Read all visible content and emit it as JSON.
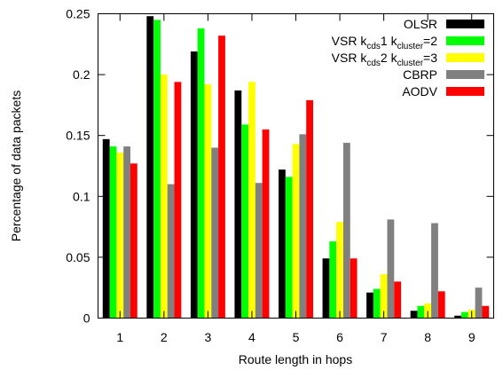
{
  "chart_data": {
    "type": "bar",
    "title": "",
    "xlabel": "Route length in hops",
    "ylabel": "Percentage of data packets",
    "categories": [
      "1",
      "2",
      "3",
      "4",
      "5",
      "6",
      "7",
      "8",
      "9"
    ],
    "ylim": [
      0,
      0.25
    ],
    "yticks": [
      "0",
      "0.05",
      "0.1",
      "0.15",
      "0.2",
      "0.25"
    ],
    "grid": false,
    "legend_position": "top-right",
    "series": [
      {
        "name": "OLSR",
        "legend": {
          "pre": "OLSR"
        },
        "color": "#000000",
        "values": [
          0.147,
          0.248,
          0.219,
          0.187,
          0.122,
          0.049,
          0.021,
          0.006,
          0.002
        ]
      },
      {
        "name": "VSR kcds1 kcluster=2",
        "legend": {
          "pre": "VSR k",
          "sub1": "cds",
          "mid": "1 k",
          "sub2": "cluster",
          "post": "=2"
        },
        "color": "#00ff00",
        "values": [
          0.141,
          0.245,
          0.238,
          0.159,
          0.116,
          0.063,
          0.024,
          0.01,
          0.005
        ]
      },
      {
        "name": "VSR kcds2 kcluster=3",
        "legend": {
          "pre": "VSR k",
          "sub1": "cds",
          "mid": "2 k",
          "sub2": "cluster",
          "post": "=3"
        },
        "color": "#ffff00",
        "values": [
          0.136,
          0.2,
          0.192,
          0.194,
          0.143,
          0.079,
          0.036,
          0.012,
          0.007
        ]
      },
      {
        "name": "CBRP",
        "legend": {
          "pre": "CBRP"
        },
        "color": "#808080",
        "values": [
          0.141,
          0.11,
          0.14,
          0.111,
          0.151,
          0.144,
          0.081,
          0.078,
          0.025
        ]
      },
      {
        "name": "AODV",
        "legend": {
          "pre": "AODV"
        },
        "color": "#ff0000",
        "values": [
          0.127,
          0.194,
          0.232,
          0.155,
          0.179,
          0.049,
          0.03,
          0.022,
          0.01
        ]
      }
    ]
  }
}
